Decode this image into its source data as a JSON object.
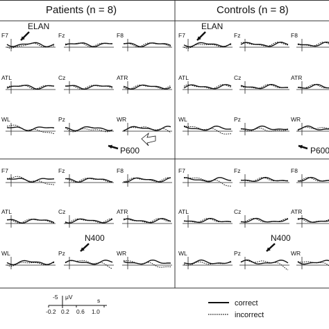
{
  "panels": [
    {
      "title": "Patients (n = 8)"
    },
    {
      "title": "Controls (n = 8)"
    }
  ],
  "electrodes": [
    [
      "F7",
      "Fz",
      "F8"
    ],
    [
      "ATL",
      "Cz",
      "ATR"
    ],
    [
      "WL",
      "Pz",
      "WR"
    ]
  ],
  "electrode_labels_shown": [
    [
      [
        "F7",
        "Fz",
        "F8"
      ],
      [
        "ATL",
        "Cz",
        "ATR"
      ],
      [
        "WL",
        "Pz",
        "WR"
      ],
      [
        "F7",
        "Fz",
        "F8"
      ],
      [
        "ATL",
        "Cz",
        "ATR"
      ],
      [
        "WL",
        "Pz",
        "WR"
      ]
    ],
    [
      [
        "F7",
        "Fz",
        "F8"
      ],
      [
        "ATL",
        "Cz",
        "ATR"
      ],
      [
        "WL",
        "Pz",
        "WR"
      ],
      [
        "F7",
        "Fz",
        "F8"
      ],
      [
        "ATL",
        "Cz",
        "ATR"
      ],
      [
        "WL",
        "Pz",
        "WR"
      ]
    ]
  ],
  "component_labels": {
    "elan": "ELAN",
    "p600": "P600",
    "n400": "N400"
  },
  "scale": {
    "voltage": "-5",
    "voltage_unit": "μV",
    "time_unit": "s",
    "ticks": [
      "-0.2",
      "0.2",
      "0.6",
      "1.0"
    ]
  },
  "legend": {
    "correct": "correct",
    "incorrect": "incorrect"
  },
  "colors": {
    "line": "#111111",
    "frame": "#333333",
    "background": "#ffffff"
  }
}
